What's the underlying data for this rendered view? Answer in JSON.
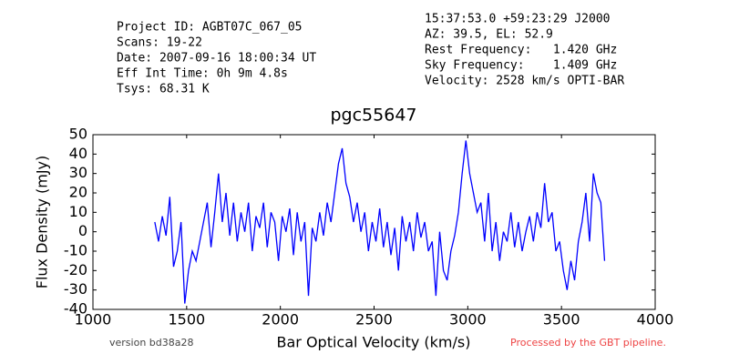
{
  "chart_data": {
    "type": "line",
    "title": "pgc55647",
    "header_left": [
      "Project ID: AGBT07C_067_05",
      "Scans: 19-22",
      "Date: 2007-09-16 18:00:34 UT",
      "Eff Int Time: 0h 9m 4.8s",
      "Tsys: 68.31 K"
    ],
    "header_right": [
      "15:37:53.0 +59:23:29 J2000",
      "AZ: 39.5, EL: 52.9",
      "Rest Frequency:   1.420 GHz",
      "Sky Frequency:    1.409 GHz",
      "Velocity: 2528 km/s OPTI-BAR"
    ],
    "footer_left": "version bd38a28",
    "footer_right": "Processed by the GBT pipeline.",
    "footer_right_color": "#ee4444",
    "xlabel": "Bar Optical Velocity (km/s)",
    "ylabel": "Flux Density (mJy)",
    "xlim": [
      1000,
      4000
    ],
    "xticks": [
      1000,
      1500,
      2000,
      2500,
      3000,
      3500,
      4000
    ],
    "ylim": [
      -40,
      50
    ],
    "yticks": [
      -40,
      -30,
      -20,
      -10,
      0,
      10,
      20,
      30,
      40,
      50
    ],
    "x": [
      1330,
      1350,
      1370,
      1390,
      1410,
      1430,
      1450,
      1470,
      1490,
      1510,
      1530,
      1550,
      1570,
      1590,
      1610,
      1630,
      1650,
      1670,
      1690,
      1710,
      1730,
      1750,
      1770,
      1790,
      1810,
      1830,
      1850,
      1870,
      1890,
      1910,
      1930,
      1950,
      1970,
      1990,
      2010,
      2030,
      2050,
      2070,
      2090,
      2110,
      2130,
      2150,
      2170,
      2190,
      2210,
      2230,
      2250,
      2270,
      2290,
      2310,
      2330,
      2350,
      2370,
      2390,
      2410,
      2430,
      2450,
      2470,
      2490,
      2510,
      2530,
      2550,
      2570,
      2590,
      2610,
      2630,
      2650,
      2670,
      2690,
      2710,
      2730,
      2750,
      2770,
      2790,
      2810,
      2830,
      2850,
      2870,
      2890,
      2910,
      2930,
      2950,
      2970,
      2990,
      3010,
      3030,
      3050,
      3070,
      3090,
      3110,
      3130,
      3150,
      3170,
      3190,
      3210,
      3230,
      3250,
      3270,
      3290,
      3310,
      3330,
      3350,
      3370,
      3390,
      3410,
      3430,
      3450,
      3470,
      3490,
      3510,
      3530,
      3550,
      3570,
      3590,
      3610,
      3630,
      3650,
      3670,
      3690,
      3710,
      3730
    ],
    "series": [
      {
        "name": "pgc55647",
        "color": "#0000ff",
        "values": [
          5,
          -5,
          8,
          -2,
          18,
          -18,
          -10,
          5,
          -37,
          -20,
          -10,
          -15,
          -5,
          5,
          15,
          -8,
          10,
          30,
          5,
          20,
          -2,
          15,
          -5,
          10,
          0,
          15,
          -10,
          8,
          2,
          15,
          -8,
          10,
          5,
          -15,
          8,
          0,
          12,
          -12,
          10,
          -5,
          5,
          -33,
          2,
          -5,
          10,
          -2,
          15,
          5,
          20,
          35,
          43,
          25,
          18,
          5,
          15,
          0,
          10,
          -10,
          5,
          -5,
          12,
          -8,
          5,
          -12,
          2,
          -20,
          8,
          -5,
          5,
          -10,
          10,
          -3,
          5,
          -10,
          -5,
          -33,
          0,
          -20,
          -25,
          -10,
          -2,
          10,
          30,
          47,
          30,
          20,
          10,
          15,
          -5,
          20,
          -10,
          5,
          -15,
          0,
          -5,
          10,
          -8,
          5,
          -10,
          0,
          8,
          -5,
          10,
          2,
          25,
          5,
          10,
          -10,
          -5,
          -20,
          -30,
          -15,
          -25,
          -5,
          5,
          20,
          -5,
          30,
          20,
          15,
          -15
        ]
      }
    ]
  }
}
